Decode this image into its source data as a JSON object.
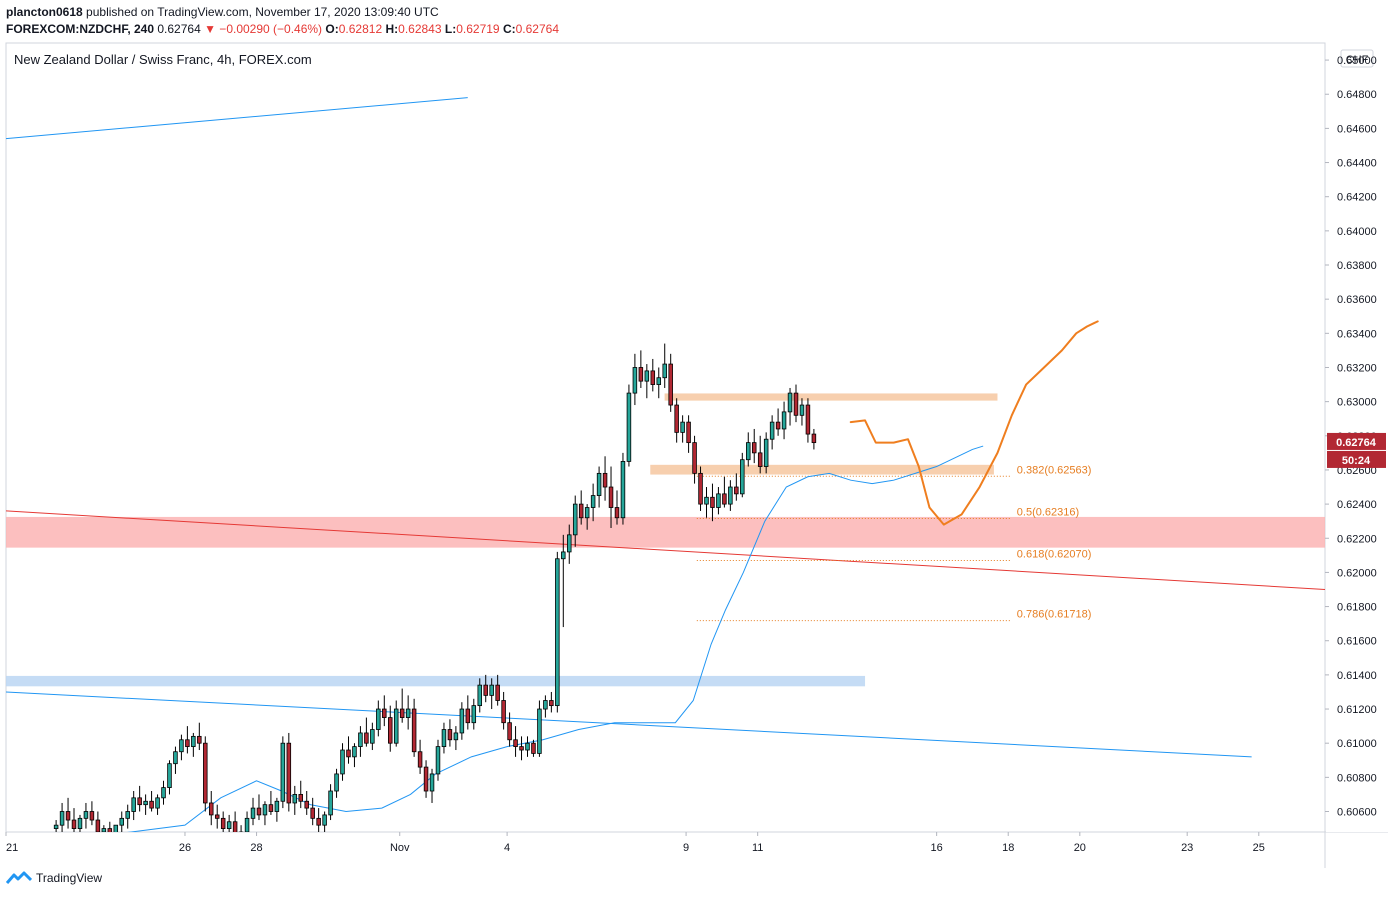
{
  "header": {
    "author": "plancton0618",
    "published_text": "published on TradingView.com, November 17, 2020 13:09:40 UTC",
    "symbol": "FOREXCOM:NZDCHF, 240",
    "last": "0.62764",
    "change": "▼ −0.00290 (−0.46%)",
    "o_label": "O:",
    "o": "0.62812",
    "h_label": "H:",
    "h": "0.62843",
    "l_label": "L:",
    "l": "0.62719",
    "c_label": "C:",
    "c": "0.62764"
  },
  "footer": {
    "brand": "TradingView",
    "logo_icon": "tradingview-logo-icon"
  },
  "colors": {
    "up": "#26a69a",
    "down": "#b22833",
    "candle_border": "#000000",
    "ma": "#2196f3",
    "red_line": "#e53935",
    "blue_line": "#2196f3",
    "resistance_zone": "#f6c7a0",
    "support_zone_red": "#fbb4b4",
    "support_zone_blue": "#bbd6f3",
    "fib": "#e67e22",
    "projection": "#ef7e1f"
  },
  "chart_data": {
    "type": "candlestick",
    "title": "New Zealand Dollar / Swiss Franc, 4h, FOREX.com",
    "currency": "CHF",
    "ylim": [
      0.6048,
      0.651
    ],
    "y_ticks": [
      "0.65000",
      "0.64800",
      "0.64600",
      "0.64400",
      "0.64200",
      "0.64000",
      "0.63800",
      "0.63600",
      "0.63400",
      "0.63200",
      "0.63000",
      "0.62800",
      "0.62600",
      "0.62400",
      "0.62200",
      "0.62000",
      "0.61800",
      "0.61600",
      "0.61400",
      "0.61200",
      "0.61000",
      "0.60800",
      "0.60600"
    ],
    "x_ticks": [
      {
        "label": "21",
        "day": 21.0
      },
      {
        "label": "26",
        "day": 26.0
      },
      {
        "label": "28",
        "day": 28.0
      },
      {
        "label": "Nov",
        "day": 32.0
      },
      {
        "label": "4",
        "day": 35.0
      },
      {
        "label": "9",
        "day": 40.0
      },
      {
        "label": "11",
        "day": 42.0
      },
      {
        "label": "16",
        "day": 47.0
      },
      {
        "label": "18",
        "day": 49.0
      },
      {
        "label": "20",
        "day": 51.0
      },
      {
        "label": "23",
        "day": 54.0
      },
      {
        "label": "25",
        "day": 56.0
      }
    ],
    "x_range_days": [
      21.0,
      57.85
    ],
    "last_price": {
      "value": 0.62764,
      "label": "0.62764",
      "countdown": "50:24"
    },
    "candle_start_day": 22.4,
    "candle_step_days": 0.1667,
    "candles": [
      [
        0.605,
        0.6055,
        0.6045,
        0.6052
      ],
      [
        0.6052,
        0.6065,
        0.6048,
        0.606
      ],
      [
        0.606,
        0.6068,
        0.605,
        0.6055
      ],
      [
        0.6055,
        0.6062,
        0.6045,
        0.605
      ],
      [
        0.605,
        0.6058,
        0.6044,
        0.6056
      ],
      [
        0.6056,
        0.6065,
        0.605,
        0.606
      ],
      [
        0.606,
        0.6066,
        0.6052,
        0.6055
      ],
      [
        0.6055,
        0.606,
        0.6045,
        0.6048
      ],
      [
        0.6048,
        0.6052,
        0.604,
        0.605
      ],
      [
        0.605,
        0.6054,
        0.6044,
        0.6046
      ],
      [
        0.6046,
        0.605,
        0.6042,
        0.6052
      ],
      [
        0.6052,
        0.606,
        0.6048,
        0.6056
      ],
      [
        0.6056,
        0.6064,
        0.605,
        0.606
      ],
      [
        0.606,
        0.6072,
        0.6055,
        0.6068
      ],
      [
        0.6068,
        0.6075,
        0.606,
        0.6064
      ],
      [
        0.6064,
        0.607,
        0.6058,
        0.6066
      ],
      [
        0.6066,
        0.6072,
        0.606,
        0.6062
      ],
      [
        0.6062,
        0.607,
        0.6058,
        0.6068
      ],
      [
        0.6068,
        0.6078,
        0.6064,
        0.6074
      ],
      [
        0.6074,
        0.609,
        0.607,
        0.6088
      ],
      [
        0.6088,
        0.6098,
        0.6082,
        0.6095
      ],
      [
        0.6095,
        0.6105,
        0.609,
        0.6102
      ],
      [
        0.6102,
        0.611,
        0.6094,
        0.6098
      ],
      [
        0.6098,
        0.6106,
        0.6092,
        0.6104
      ],
      [
        0.6104,
        0.6112,
        0.6096,
        0.61
      ],
      [
        0.61,
        0.6104,
        0.606,
        0.6065
      ],
      [
        0.6065,
        0.6072,
        0.6052,
        0.6058
      ],
      [
        0.6058,
        0.6064,
        0.605,
        0.6056
      ],
      [
        0.6056,
        0.606,
        0.6046,
        0.605
      ],
      [
        0.605,
        0.6058,
        0.6046,
        0.6054
      ],
      [
        0.6054,
        0.606,
        0.604,
        0.6044
      ],
      [
        0.6044,
        0.6052,
        0.6038,
        0.6048
      ],
      [
        0.6048,
        0.606,
        0.6045,
        0.6056
      ],
      [
        0.6056,
        0.6068,
        0.6052,
        0.6062
      ],
      [
        0.6062,
        0.607,
        0.6055,
        0.6058
      ],
      [
        0.6058,
        0.6066,
        0.6052,
        0.6064
      ],
      [
        0.6064,
        0.6072,
        0.6058,
        0.606
      ],
      [
        0.606,
        0.6068,
        0.6054,
        0.6066
      ],
      [
        0.6066,
        0.6104,
        0.6062,
        0.61
      ],
      [
        0.61,
        0.6106,
        0.606,
        0.6065
      ],
      [
        0.6065,
        0.6075,
        0.6058,
        0.607
      ],
      [
        0.607,
        0.6078,
        0.6062,
        0.6066
      ],
      [
        0.6066,
        0.6072,
        0.6058,
        0.6062
      ],
      [
        0.6062,
        0.6068,
        0.6052,
        0.6056
      ],
      [
        0.6056,
        0.6062,
        0.6048,
        0.6052
      ],
      [
        0.6052,
        0.606,
        0.6048,
        0.6058
      ],
      [
        0.6058,
        0.6076,
        0.6055,
        0.6072
      ],
      [
        0.6072,
        0.6085,
        0.6068,
        0.6082
      ],
      [
        0.6082,
        0.61,
        0.6078,
        0.6096
      ],
      [
        0.6096,
        0.6104,
        0.6088,
        0.6092
      ],
      [
        0.6092,
        0.61,
        0.6086,
        0.6098
      ],
      [
        0.6098,
        0.611,
        0.6092,
        0.6106
      ],
      [
        0.6106,
        0.6115,
        0.6098,
        0.61
      ],
      [
        0.61,
        0.6112,
        0.6096,
        0.6108
      ],
      [
        0.6108,
        0.6125,
        0.6104,
        0.612
      ],
      [
        0.612,
        0.6128,
        0.611,
        0.6115
      ],
      [
        0.6115,
        0.6122,
        0.6095,
        0.61
      ],
      [
        0.61,
        0.6125,
        0.6098,
        0.612
      ],
      [
        0.612,
        0.6132,
        0.6112,
        0.6115
      ],
      [
        0.6115,
        0.6128,
        0.6108,
        0.612
      ],
      [
        0.612,
        0.6126,
        0.6092,
        0.6095
      ],
      [
        0.6095,
        0.6102,
        0.6082,
        0.6086
      ],
      [
        0.6086,
        0.609,
        0.6068,
        0.6072
      ],
      [
        0.6072,
        0.6085,
        0.6065,
        0.6082
      ],
      [
        0.6082,
        0.6102,
        0.6078,
        0.6098
      ],
      [
        0.6098,
        0.6112,
        0.6094,
        0.6108
      ],
      [
        0.6108,
        0.6114,
        0.6098,
        0.6102
      ],
      [
        0.6102,
        0.611,
        0.6096,
        0.6106
      ],
      [
        0.6106,
        0.6124,
        0.6102,
        0.612
      ],
      [
        0.612,
        0.6128,
        0.6108,
        0.6112
      ],
      [
        0.6112,
        0.6126,
        0.6108,
        0.6122
      ],
      [
        0.6122,
        0.6138,
        0.6118,
        0.6134
      ],
      [
        0.6134,
        0.614,
        0.6124,
        0.6128
      ],
      [
        0.6128,
        0.6138,
        0.612,
        0.6134
      ],
      [
        0.6134,
        0.614,
        0.6122,
        0.6125
      ],
      [
        0.6125,
        0.613,
        0.6108,
        0.6112
      ],
      [
        0.6112,
        0.6118,
        0.6098,
        0.6102
      ],
      [
        0.6102,
        0.611,
        0.6092,
        0.6098
      ],
      [
        0.6098,
        0.6104,
        0.609,
        0.6096
      ],
      [
        0.6096,
        0.6104,
        0.6092,
        0.61
      ],
      [
        0.61,
        0.6102,
        0.6092,
        0.6094
      ],
      [
        0.6094,
        0.6125,
        0.6092,
        0.612
      ],
      [
        0.612,
        0.6128,
        0.6115,
        0.6125
      ],
      [
        0.6125,
        0.613,
        0.6118,
        0.6122
      ],
      [
        0.6122,
        0.6212,
        0.6118,
        0.6208
      ],
      [
        0.6208,
        0.6222,
        0.6168,
        0.6212
      ],
      [
        0.6212,
        0.6228,
        0.6205,
        0.6222
      ],
      [
        0.6222,
        0.6245,
        0.6215,
        0.624
      ],
      [
        0.624,
        0.6248,
        0.6228,
        0.6232
      ],
      [
        0.6232,
        0.624,
        0.6225,
        0.6238
      ],
      [
        0.6238,
        0.6252,
        0.623,
        0.6245
      ],
      [
        0.6245,
        0.6262,
        0.6238,
        0.6258
      ],
      [
        0.6258,
        0.6268,
        0.6242,
        0.625
      ],
      [
        0.625,
        0.6262,
        0.6226,
        0.6238
      ],
      [
        0.6238,
        0.6248,
        0.6228,
        0.6232
      ],
      [
        0.6232,
        0.627,
        0.6228,
        0.6265
      ],
      [
        0.6265,
        0.631,
        0.6262,
        0.6305
      ],
      [
        0.6305,
        0.6328,
        0.6298,
        0.632
      ],
      [
        0.632,
        0.633,
        0.6308,
        0.6312
      ],
      [
        0.6312,
        0.6322,
        0.6302,
        0.6318
      ],
      [
        0.6318,
        0.6325,
        0.6306,
        0.631
      ],
      [
        0.631,
        0.632,
        0.6302,
        0.6314
      ],
      [
        0.6314,
        0.6334,
        0.6308,
        0.6322
      ],
      [
        0.6322,
        0.6328,
        0.6294,
        0.6298
      ],
      [
        0.6298,
        0.6302,
        0.6276,
        0.6282
      ],
      [
        0.6282,
        0.6292,
        0.6276,
        0.6288
      ],
      [
        0.6288,
        0.6292,
        0.627,
        0.6276
      ],
      [
        0.6276,
        0.628,
        0.6252,
        0.6258
      ],
      [
        0.6258,
        0.6262,
        0.6236,
        0.624
      ],
      [
        0.624,
        0.625,
        0.6232,
        0.6244
      ],
      [
        0.6244,
        0.6252,
        0.623,
        0.6238
      ],
      [
        0.6238,
        0.625,
        0.6234,
        0.6246
      ],
      [
        0.6246,
        0.6256,
        0.6238,
        0.624
      ],
      [
        0.624,
        0.6254,
        0.6236,
        0.625
      ],
      [
        0.625,
        0.6258,
        0.6242,
        0.6246
      ],
      [
        0.6246,
        0.627,
        0.6244,
        0.6266
      ],
      [
        0.6266,
        0.6282,
        0.6262,
        0.6276
      ],
      [
        0.6276,
        0.6284,
        0.6264,
        0.627
      ],
      [
        0.627,
        0.628,
        0.6258,
        0.6262
      ],
      [
        0.6262,
        0.6282,
        0.6258,
        0.6278
      ],
      [
        0.6278,
        0.6292,
        0.6272,
        0.6288
      ],
      [
        0.6288,
        0.6296,
        0.628,
        0.6284
      ],
      [
        0.6284,
        0.63,
        0.6278,
        0.6294
      ],
      [
        0.6294,
        0.6308,
        0.6286,
        0.6305
      ],
      [
        0.6305,
        0.631,
        0.6288,
        0.6292
      ],
      [
        0.6292,
        0.6302,
        0.6286,
        0.6298
      ],
      [
        0.6298,
        0.6302,
        0.6276,
        0.6281
      ],
      [
        0.6281,
        0.6284,
        0.6272,
        0.6276
      ]
    ],
    "ma": [
      [
        22.4,
        0.6043
      ],
      [
        24.5,
        0.6048
      ],
      [
        26.0,
        0.6052
      ],
      [
        27.0,
        0.6068
      ],
      [
        28.0,
        0.6078
      ],
      [
        28.7,
        0.6072
      ],
      [
        29.5,
        0.6064
      ],
      [
        30.5,
        0.606
      ],
      [
        31.5,
        0.6062
      ],
      [
        32.3,
        0.607
      ],
      [
        33.0,
        0.6082
      ],
      [
        34.0,
        0.6092
      ],
      [
        35.0,
        0.6098
      ],
      [
        36.0,
        0.6102
      ],
      [
        37.0,
        0.6108
      ],
      [
        38.0,
        0.6112
      ],
      [
        39.0,
        0.6112
      ],
      [
        39.7,
        0.6112
      ],
      [
        40.2,
        0.6125
      ],
      [
        40.7,
        0.6158
      ],
      [
        41.1,
        0.6178
      ],
      [
        41.6,
        0.62
      ],
      [
        42.2,
        0.623
      ],
      [
        42.8,
        0.625
      ],
      [
        43.4,
        0.6256
      ],
      [
        44.0,
        0.6258
      ],
      [
        44.6,
        0.6254
      ],
      [
        45.2,
        0.6252
      ],
      [
        45.8,
        0.6254
      ],
      [
        46.4,
        0.6258
      ],
      [
        47.0,
        0.6262
      ],
      [
        47.6,
        0.6268
      ],
      [
        48.0,
        0.6272
      ],
      [
        48.3,
        0.6274
      ]
    ],
    "trend_lines": [
      {
        "name": "upper-blue-line",
        "color": "#2196f3",
        "p1": [
          21.0,
          0.6454
        ],
        "p2": [
          33.9,
          0.6478
        ]
      },
      {
        "name": "red-descending-line",
        "color": "#e53935",
        "p1": [
          21.0,
          0.6236
        ],
        "p2": [
          57.85,
          0.619
        ]
      },
      {
        "name": "lower-blue-line",
        "color": "#2196f3",
        "p1": [
          21.0,
          0.613
        ],
        "p2": [
          55.8,
          0.6092
        ]
      }
    ],
    "zones": [
      {
        "name": "red-support-zone",
        "color": "#fbb4b4",
        "x": [
          21.0,
          57.85
        ],
        "y": [
          0.62145,
          0.62325
        ]
      },
      {
        "name": "blue-support-zone",
        "color": "#bbd6f3",
        "x": [
          21.0,
          45.0
        ],
        "y": [
          0.61333,
          0.61394
        ]
      },
      {
        "name": "resistance-zone",
        "color": "#f6c7a0",
        "x": [
          39.4,
          48.7
        ],
        "y": [
          0.63006,
          0.63048
        ]
      },
      {
        "name": "middle-zone",
        "color": "#f6c7a0",
        "x": [
          39.0,
          48.6
        ],
        "y": [
          0.62573,
          0.6263
        ]
      }
    ],
    "fib_levels": [
      {
        "label": "0.382(0.62563)",
        "value": 0.62563
      },
      {
        "label": "0.5(0.62316)",
        "value": 0.62316
      },
      {
        "label": "0.618(0.62070)",
        "value": 0.6207
      },
      {
        "label": "0.786(0.61718)",
        "value": 0.61718
      }
    ],
    "fib_x": [
      40.3,
      49.1
    ],
    "projection_path": [
      [
        44.6,
        0.6288
      ],
      [
        45.0,
        0.6289
      ],
      [
        45.3,
        0.6276
      ],
      [
        45.8,
        0.6276
      ],
      [
        46.2,
        0.6278
      ],
      [
        46.5,
        0.6262
      ],
      [
        46.8,
        0.6238
      ],
      [
        47.2,
        0.6228
      ],
      [
        47.7,
        0.6234
      ],
      [
        48.2,
        0.625
      ],
      [
        48.7,
        0.627
      ],
      [
        49.1,
        0.6292
      ],
      [
        49.5,
        0.631
      ],
      [
        50.0,
        0.632
      ],
      [
        50.5,
        0.633
      ],
      [
        50.9,
        0.634
      ],
      [
        51.2,
        0.6344
      ],
      [
        51.4,
        0.6346
      ],
      [
        51.5,
        0.6347
      ]
    ]
  }
}
